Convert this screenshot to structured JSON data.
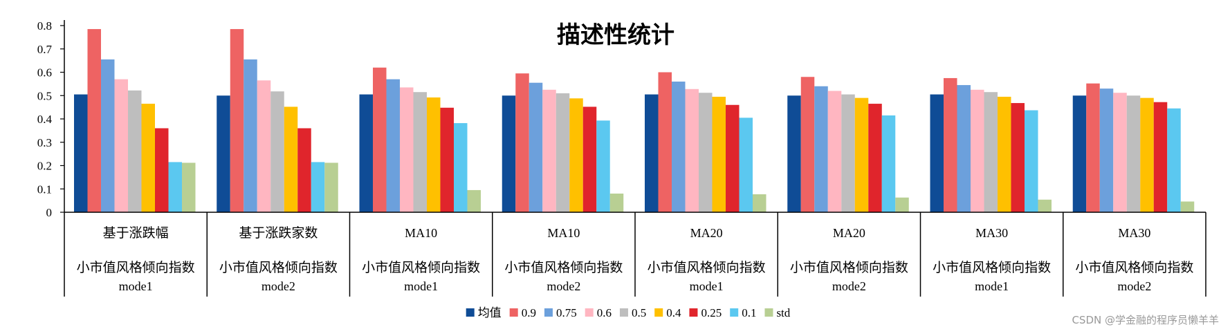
{
  "chart_data": {
    "type": "bar",
    "title": "描述性统计",
    "ylim": [
      0,
      0.8
    ],
    "yticks": [
      "0",
      "0.1",
      "0.2",
      "0.3",
      "0.4",
      "0.5",
      "0.6",
      "0.7",
      "0.8"
    ],
    "grid": false,
    "legend_position": "bottom",
    "categories": [
      {
        "line1": "基于涨跌幅",
        "line2": "小市值风格倾向指数",
        "line3": "mode1"
      },
      {
        "line1": "基于涨跌家数",
        "line2": "小市值风格倾向指数",
        "line3": "mode2"
      },
      {
        "line1": "MA10",
        "line2": "小市值风格倾向指数",
        "line3": "mode1"
      },
      {
        "line1": "MA10",
        "line2": "小市值风格倾向指数",
        "line3": "mode2"
      },
      {
        "line1": "MA20",
        "line2": "小市值风格倾向指数",
        "line3": "mode1"
      },
      {
        "line1": "MA20",
        "line2": "小市值风格倾向指数",
        "line3": "mode2"
      },
      {
        "line1": "MA30",
        "line2": "小市值风格倾向指数",
        "line3": "mode1"
      },
      {
        "line1": "MA30",
        "line2": "小市值风格倾向指数",
        "line3": "mode2"
      }
    ],
    "series": [
      {
        "name": "均值",
        "color": "#0F4C96",
        "values": [
          0.505,
          0.5,
          0.505,
          0.5,
          0.505,
          0.5,
          0.505,
          0.5
        ]
      },
      {
        "name": "0.9",
        "color": "#EE6363",
        "values": [
          0.785,
          0.785,
          0.62,
          0.595,
          0.6,
          0.58,
          0.575,
          0.552
        ]
      },
      {
        "name": "0.75",
        "color": "#6CA0DC",
        "values": [
          0.655,
          0.655,
          0.57,
          0.555,
          0.56,
          0.54,
          0.545,
          0.53
        ]
      },
      {
        "name": "0.6",
        "color": "#FFB6C1",
        "values": [
          0.57,
          0.565,
          0.535,
          0.525,
          0.528,
          0.52,
          0.525,
          0.512
        ]
      },
      {
        "name": "0.5",
        "color": "#BEBEBE",
        "values": [
          0.522,
          0.518,
          0.515,
          0.51,
          0.512,
          0.505,
          0.515,
          0.5
        ]
      },
      {
        "name": "0.4",
        "color": "#FFC000",
        "values": [
          0.465,
          0.452,
          0.492,
          0.488,
          0.495,
          0.49,
          0.495,
          0.49
        ]
      },
      {
        "name": "0.25",
        "color": "#E0252C",
        "values": [
          0.36,
          0.36,
          0.448,
          0.452,
          0.46,
          0.465,
          0.468,
          0.472
        ]
      },
      {
        "name": "0.1",
        "color": "#5BC8F0",
        "values": [
          0.215,
          0.215,
          0.382,
          0.393,
          0.405,
          0.415,
          0.437,
          0.445
        ]
      },
      {
        "name": "std",
        "color": "#B8CF93",
        "values": [
          0.212,
          0.212,
          0.095,
          0.08,
          0.077,
          0.063,
          0.054,
          0.046
        ]
      }
    ]
  },
  "watermark": "CSDN @学金融的程序员懒羊羊"
}
